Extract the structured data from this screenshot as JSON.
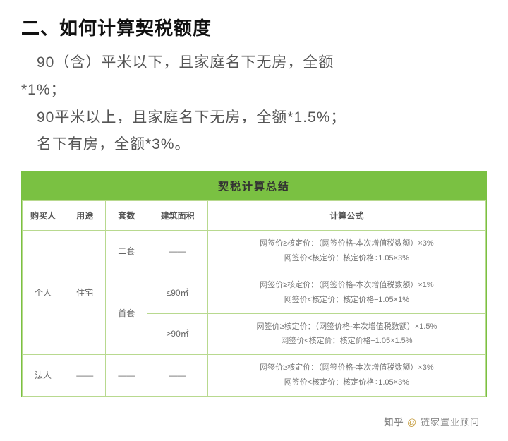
{
  "heading": "二、如何计算契税额度",
  "bullets": [
    "　90（含）平米以下，且家庭名下无房，全额",
    "*1%；",
    "　90平米以上，且家庭名下无房，全额*1.5%；",
    "　名下有房，全额*3%。"
  ],
  "table": {
    "title": "契税计算总结",
    "background_color": "#7ac142",
    "border_color": "#b8d98f",
    "columns": [
      "购买人",
      "用途",
      "套数",
      "建筑面积",
      "计算公式"
    ],
    "rows": [
      {
        "buyer": "个人",
        "use": "住宅",
        "set": "二套",
        "area": "——",
        "formula": "网签价≥核定价：（网签价格-本次增值税数额）×3%\n网签价<核定价：核定价格÷1.05×3%"
      },
      {
        "set": "首套",
        "area": "≤90㎡",
        "formula": "网签价≥核定价：（网签价格-本次增值税数额）×1%\n网签价<核定价：核定价格÷1.05×1%"
      },
      {
        "area": ">90㎡",
        "formula": "网签价≥核定价：（网签价格-本次增值税数额）×1.5%\n网签价<核定价：核定价格÷1.05×1.5%"
      },
      {
        "buyer": "法人",
        "use": "——",
        "set": "——",
        "area": "——",
        "formula": "网签价≥核定价：（网签价格-本次增值税数额）×3%\n网签价<核定价：核定价格÷1.05×3%"
      }
    ]
  },
  "watermark": {
    "site": "知乎",
    "at": "@",
    "name": "链家置业顾问"
  }
}
